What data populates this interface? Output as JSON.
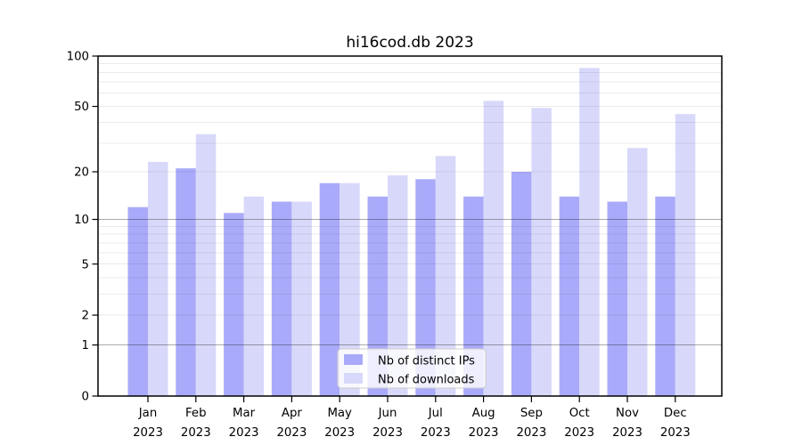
{
  "chart_data": {
    "type": "bar",
    "title": "hi16cod.db 2023",
    "xlabel": "",
    "ylabel": "",
    "categories": [
      "Jan",
      "Feb",
      "Mar",
      "Apr",
      "May",
      "Jun",
      "Jul",
      "Aug",
      "Sep",
      "Oct",
      "Nov",
      "Dec"
    ],
    "x_year_label": "2023",
    "series": [
      {
        "name": "Nb of distinct IPs",
        "color": "#aaaafa",
        "values": [
          12,
          21,
          11,
          13,
          17,
          14,
          18,
          14,
          20,
          14,
          13,
          14
        ]
      },
      {
        "name": "Nb of downloads",
        "color": "#d8d8fa",
        "values": [
          23,
          34,
          14,
          13,
          17,
          19,
          25,
          54,
          49,
          85,
          28,
          45
        ]
      }
    ],
    "yscale": "log1p",
    "ylim": [
      0,
      100
    ],
    "yticks": [
      0,
      1,
      2,
      5,
      10,
      20,
      50,
      100
    ],
    "ytick_labels": [
      "0",
      "1",
      "2",
      "5",
      "10",
      "20",
      "50",
      "100"
    ],
    "gridlines": [
      1,
      2,
      3,
      4,
      5,
      6,
      7,
      8,
      9,
      10,
      20,
      30,
      40,
      50,
      60,
      70,
      80,
      90
    ],
    "major_gridlines": [
      1,
      10
    ],
    "grid": true,
    "legend_position": "lower center",
    "colors": {
      "axes_frame": "#000000",
      "major_grid": "rgba(0,0,0,0.33)",
      "minor_grid": "rgba(0,0,0,0.08)",
      "legend_border": "#cccccc",
      "legend_bg": "rgba(255,255,255,0.8)"
    }
  }
}
